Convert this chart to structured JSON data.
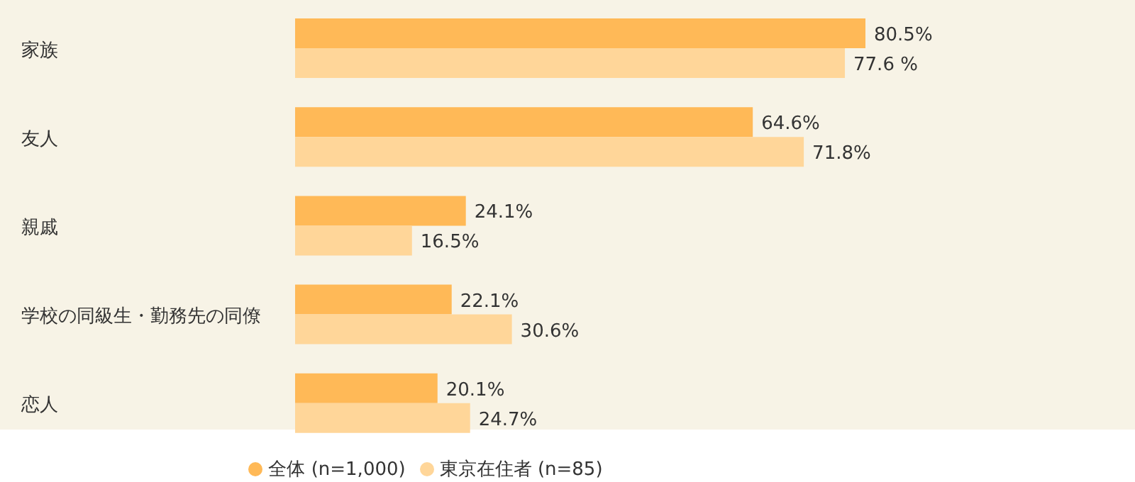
{
  "chart_data": {
    "type": "bar",
    "orientation": "horizontal",
    "categories": [
      "家族",
      "友人",
      "親戚",
      "学校の同級生・勤務先の同僚",
      "恋人"
    ],
    "series": [
      {
        "name": "全体 (n=1,000)",
        "color": "#ffb957",
        "values": [
          80.5,
          64.6,
          24.1,
          22.1,
          20.1
        ],
        "value_labels": [
          "80.5%",
          "64.6%",
          "24.1%",
          "22.1%",
          "20.1%"
        ]
      },
      {
        "name": "東京在住者 (n=85)",
        "color": "#ffd699",
        "values": [
          77.6,
          71.8,
          16.5,
          30.6,
          24.7
        ],
        "value_labels": [
          "77.6 %",
          "71.8%",
          "16.5%",
          "30.6%",
          "24.7%"
        ]
      }
    ],
    "legend": "bottom",
    "grid": false
  }
}
